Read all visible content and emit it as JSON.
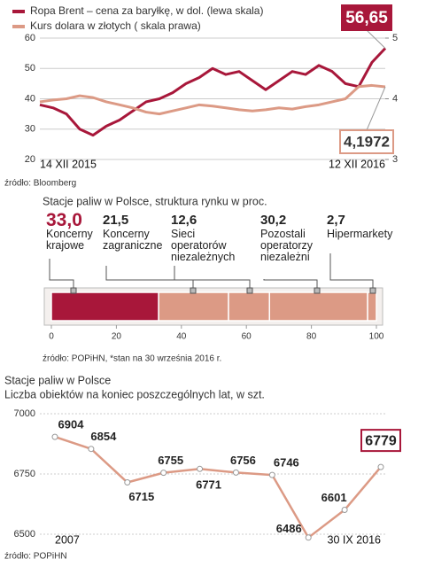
{
  "chart_data": [
    {
      "type": "line",
      "categories": [
        "14 XII 2015",
        null,
        null,
        null,
        null,
        null,
        null,
        null,
        null,
        null,
        null,
        null,
        null,
        null,
        null,
        null,
        null,
        null,
        null,
        null,
        null,
        null,
        null,
        null,
        null,
        null,
        "12 XII 2016"
      ],
      "series": [
        {
          "name": "Ropa Brent – cena za baryłkę, w dol. (lewa skala)",
          "color": "#a8173a",
          "values": [
            38,
            37,
            35,
            30,
            28,
            31,
            33,
            36,
            39,
            40,
            42,
            45,
            47,
            50,
            48,
            49,
            46,
            43,
            46,
            49,
            48,
            51,
            49,
            45,
            44,
            52,
            56.65
          ],
          "value_labels": [
            null,
            null,
            null,
            null,
            null,
            null,
            null,
            null,
            null,
            null,
            null,
            null,
            null,
            null,
            null,
            null,
            null,
            null,
            null,
            null,
            null,
            null,
            null,
            null,
            null,
            null,
            "56,65"
          ]
        },
        {
          "name": "Kurs dolara w złotych ( skala prawa)",
          "color": "#dc9a85",
          "axis": "y2",
          "values": [
            3.95,
            3.98,
            4.0,
            4.05,
            4.02,
            3.95,
            3.9,
            3.85,
            3.78,
            3.75,
            3.8,
            3.85,
            3.9,
            3.88,
            3.85,
            3.82,
            3.8,
            3.82,
            3.85,
            3.83,
            3.87,
            3.9,
            3.95,
            4.0,
            4.2,
            4.22,
            4.1972
          ],
          "value_labels": [
            null,
            null,
            null,
            null,
            null,
            null,
            null,
            null,
            null,
            null,
            null,
            null,
            null,
            null,
            null,
            null,
            null,
            null,
            null,
            null,
            null,
            null,
            null,
            null,
            null,
            null,
            "4,1972"
          ]
        }
      ],
      "ylim": [
        20,
        60
      ],
      "yticks": [
        20,
        30,
        40,
        50,
        60
      ],
      "y2lim": [
        3,
        5
      ],
      "y2ticks": [
        3,
        4,
        5
      ],
      "grid": true,
      "source": "źródło: Bloomberg"
    },
    {
      "type": "stacked_bar",
      "title": "Stacje paliw w Polsce, struktura rynku w proc.",
      "series": [
        {
          "name": "Koncerny krajowe",
          "color": "#a8173a",
          "values": [
            33.0
          ],
          "value_labels": [
            "33,0"
          ]
        },
        {
          "name": "Koncerny zagraniczne",
          "color": "#dc9a85",
          "values": [
            21.5
          ],
          "value_labels": [
            "21,5"
          ]
        },
        {
          "name": "Sieci operatorów niezależnych",
          "color": "#dc9a85",
          "values": [
            12.6
          ],
          "value_labels": [
            "12,6"
          ]
        },
        {
          "name": "Pozostali operatorzy niezależni",
          "color": "#dc9a85",
          "values": [
            30.2
          ],
          "value_labels": [
            "30,2"
          ]
        },
        {
          "name": "Hipermarkety",
          "color": "#dc9a85",
          "values": [
            2.7
          ],
          "value_labels": [
            "2,7"
          ]
        }
      ],
      "xlim": [
        0,
        100
      ],
      "xticks": [
        0,
        20,
        40,
        60,
        80,
        100
      ],
      "source": "źródło: POPiHN, *stan na 30 września 2016 r."
    },
    {
      "type": "line",
      "title": "Stacje paliw w Polsce",
      "subtitle": "Liczba obiektów na koniec poszczególnych lat, w szt.",
      "categories": [
        "2007",
        null,
        null,
        null,
        null,
        null,
        null,
        null,
        null,
        "30 IX 2016"
      ],
      "values": [
        6904,
        6854,
        6715,
        6755,
        6771,
        6756,
        6746,
        6486,
        6601,
        6779
      ],
      "color": "#dc9a85",
      "markers": true,
      "data_labels": true,
      "ylim": [
        6500,
        7000
      ],
      "yticks": [
        6500,
        6750,
        7000
      ],
      "grid": true,
      "source": "źródło: POPiHN"
    }
  ]
}
